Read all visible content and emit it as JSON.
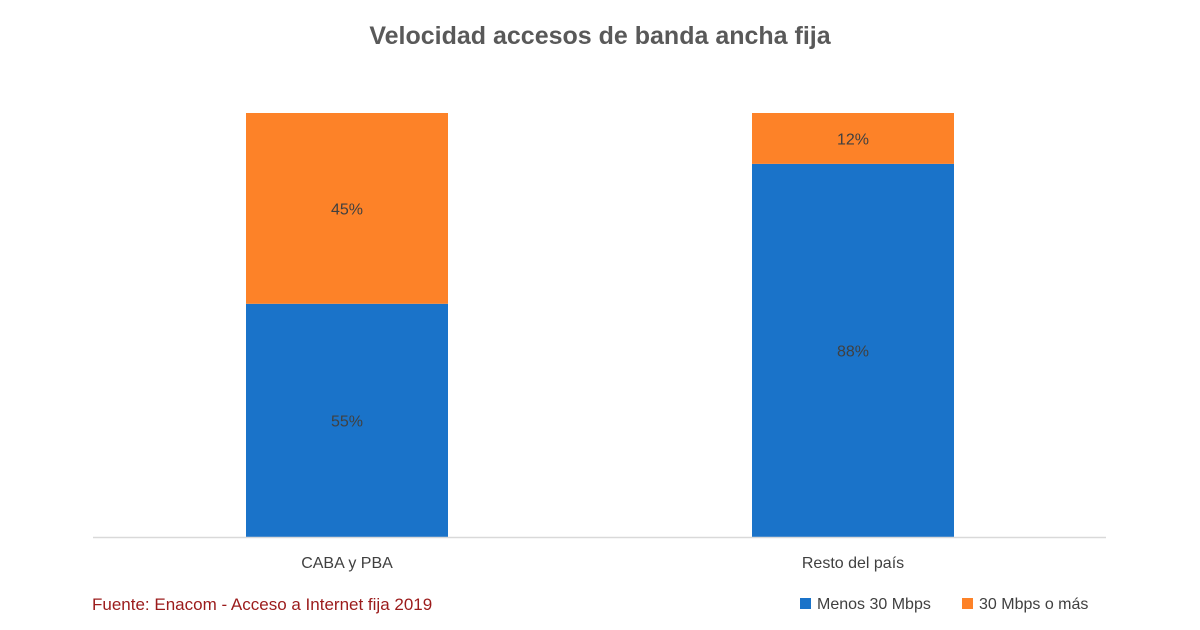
{
  "chart_data": {
    "type": "bar",
    "stacked": true,
    "title": "Velocidad accesos de banda ancha fija",
    "categories": [
      "CABA y PBA",
      "Resto del país"
    ],
    "series": [
      {
        "name": "Menos 30 Mbps",
        "values": [
          55,
          88
        ],
        "labels": [
          "55%",
          "88%"
        ],
        "color": "#1a73c9"
      },
      {
        "name": "30 Mbps o más",
        "values": [
          45,
          12
        ],
        "labels": [
          "45%",
          "12%"
        ],
        "color": "#fd8228"
      }
    ],
    "ylim": [
      0,
      100
    ],
    "grid": false,
    "legend_position": "bottom-right"
  },
  "source_note": "Fuente: Enacom - Acceso a Internet fija 2019",
  "colors": {
    "axis": "#d9d9d9",
    "source_text": "#9b1b1b"
  }
}
